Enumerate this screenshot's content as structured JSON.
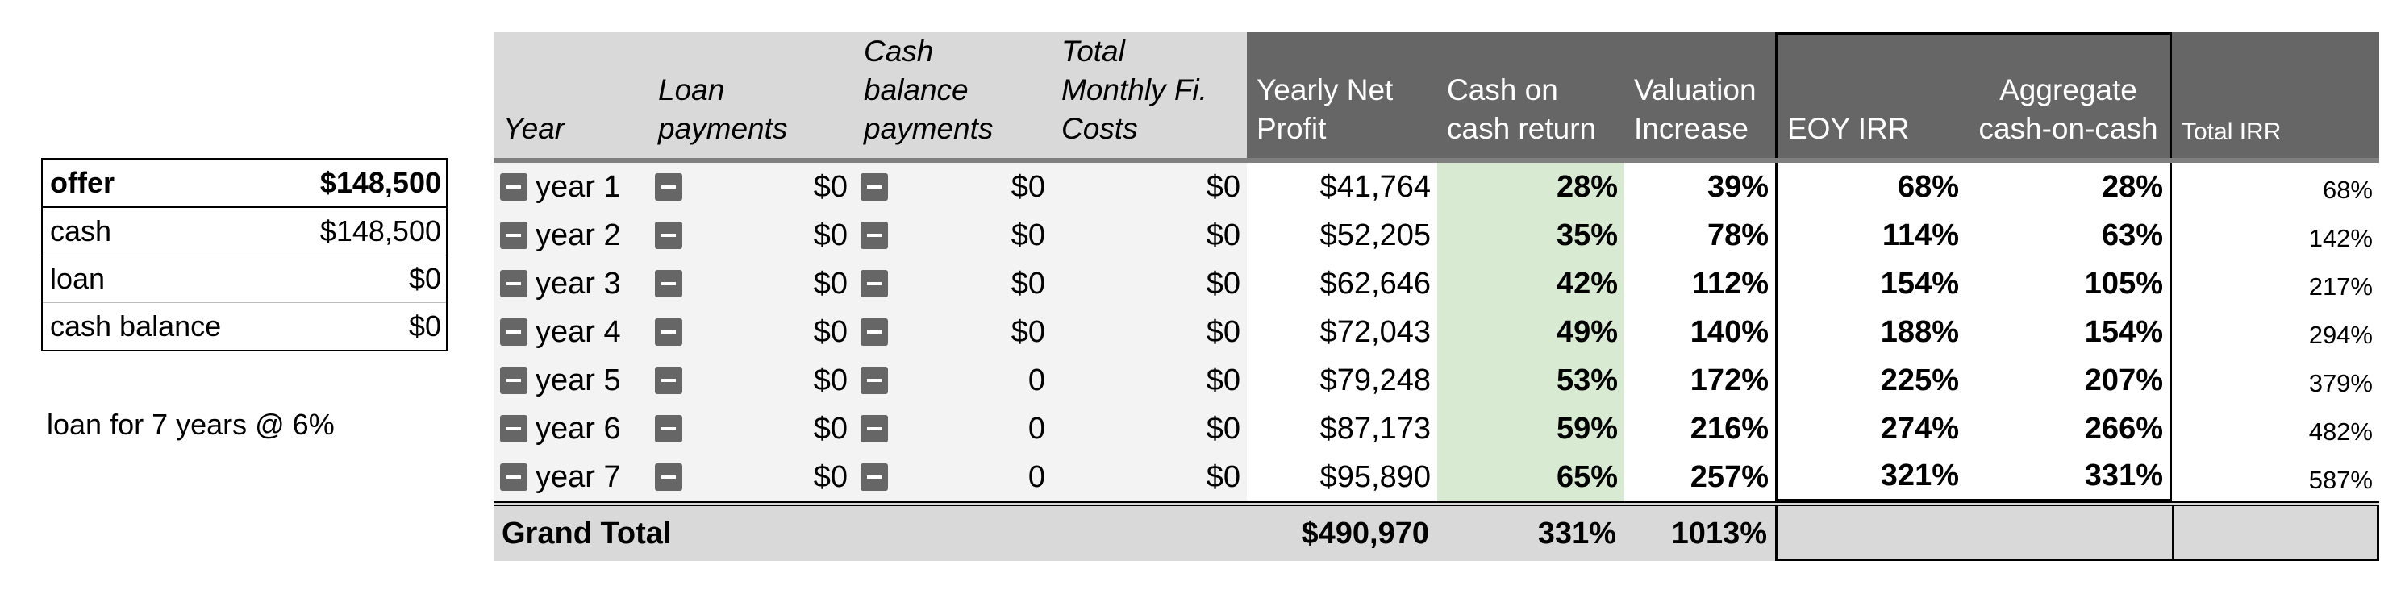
{
  "summary": {
    "rows": [
      {
        "label": "offer",
        "value": "$148,500"
      },
      {
        "label": "cash",
        "value": "$148,500"
      },
      {
        "label": "loan",
        "value": "$0"
      },
      {
        "label": "cash balance",
        "value": "$0"
      }
    ],
    "loan_note": "loan for 7 years @ 6%"
  },
  "table": {
    "headers": {
      "year": "Year",
      "loan_payments": [
        "Loan",
        "payments"
      ],
      "cash_balance_payments": [
        "Cash",
        "balance",
        "payments"
      ],
      "total_monthly": [
        "Total",
        "Monthly Fi.",
        "Costs"
      ],
      "yearly_net_profit": [
        "Yearly Net",
        "Profit"
      ],
      "cash_on_cash": [
        "Cash on",
        "cash return"
      ],
      "valuation": [
        "Valuation",
        "Increase"
      ],
      "eoy_irr": "EOY IRR",
      "aggregate": [
        "Aggregate",
        "cash-on-cash"
      ],
      "total_irr": "Total IRR"
    },
    "rows": [
      {
        "year": "year 1",
        "loan": "$0",
        "cash_bal": "$0",
        "monthly": "$0",
        "profit": "$41,764",
        "coc": "28%",
        "val": "39%",
        "eoy": "68%",
        "agg": "28%",
        "tirr": "68%"
      },
      {
        "year": "year 2",
        "loan": "$0",
        "cash_bal": "$0",
        "monthly": "$0",
        "profit": "$52,205",
        "coc": "35%",
        "val": "78%",
        "eoy": "114%",
        "agg": "63%",
        "tirr": "142%"
      },
      {
        "year": "year 3",
        "loan": "$0",
        "cash_bal": "$0",
        "monthly": "$0",
        "profit": "$62,646",
        "coc": "42%",
        "val": "112%",
        "eoy": "154%",
        "agg": "105%",
        "tirr": "217%"
      },
      {
        "year": "year 4",
        "loan": "$0",
        "cash_bal": "$0",
        "monthly": "$0",
        "profit": "$72,043",
        "coc": "49%",
        "val": "140%",
        "eoy": "188%",
        "agg": "154%",
        "tirr": "294%"
      },
      {
        "year": "year 5",
        "loan": "$0",
        "cash_bal": "0",
        "monthly": "$0",
        "profit": "$79,248",
        "coc": "53%",
        "val": "172%",
        "eoy": "225%",
        "agg": "207%",
        "tirr": "379%"
      },
      {
        "year": "year 6",
        "loan": "$0",
        "cash_bal": "0",
        "monthly": "$0",
        "profit": "$87,173",
        "coc": "59%",
        "val": "216%",
        "eoy": "274%",
        "agg": "266%",
        "tirr": "482%"
      },
      {
        "year": "year 7",
        "loan": "$0",
        "cash_bal": "0",
        "monthly": "$0",
        "profit": "$95,890",
        "coc": "65%",
        "val": "257%",
        "eoy": "321%",
        "agg": "331%",
        "tirr": "587%"
      }
    ],
    "grand_total": {
      "label": "Grand Total",
      "profit": "$490,970",
      "coc": "331%",
      "val": "1013%"
    }
  },
  "colors": {
    "header_dark": "#666666",
    "header_light": "#d9d9d9",
    "highlight_green": "#d9ead3",
    "row_grey": "#f3f3f3"
  }
}
